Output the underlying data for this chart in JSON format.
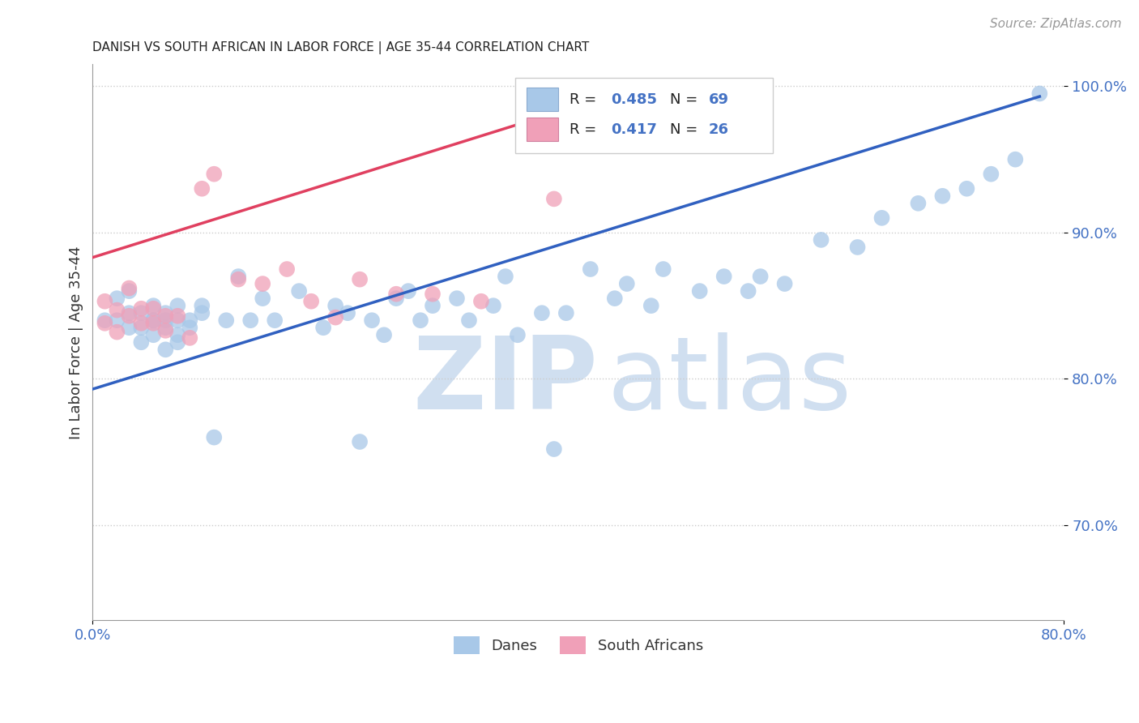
{
  "title": "DANISH VS SOUTH AFRICAN IN LABOR FORCE | AGE 35-44 CORRELATION CHART",
  "source": "Source: ZipAtlas.com",
  "ylabel": "In Labor Force | Age 35-44",
  "xlim": [
    0.0,
    0.8
  ],
  "ylim": [
    0.635,
    1.015
  ],
  "ytick_positions": [
    0.7,
    0.8,
    0.9,
    1.0
  ],
  "ytick_labels": [
    "70.0%",
    "80.0%",
    "90.0%",
    "100.0%"
  ],
  "xtick_positions": [
    0.0,
    0.8
  ],
  "xtick_labels": [
    "0.0%",
    "80.0%"
  ],
  "legend_r_blue": "0.485",
  "legend_n_blue": "69",
  "legend_r_pink": "0.417",
  "legend_n_pink": "26",
  "legend_label_blue": "Danes",
  "legend_label_pink": "South Africans",
  "blue_color": "#a8c8e8",
  "pink_color": "#f0a0b8",
  "trendline_blue": "#3060c0",
  "trendline_pink": "#e04060",
  "watermark_zip": "ZIP",
  "watermark_atlas": "atlas",
  "watermark_color": "#d0dff0",
  "title_color": "#222222",
  "tick_color": "#4472c4",
  "blue_scatter_x": [
    0.01,
    0.02,
    0.02,
    0.03,
    0.03,
    0.03,
    0.04,
    0.04,
    0.04,
    0.05,
    0.05,
    0.05,
    0.05,
    0.06,
    0.06,
    0.06,
    0.06,
    0.07,
    0.07,
    0.07,
    0.07,
    0.08,
    0.08,
    0.09,
    0.09,
    0.1,
    0.11,
    0.12,
    0.13,
    0.14,
    0.15,
    0.17,
    0.19,
    0.2,
    0.21,
    0.22,
    0.23,
    0.24,
    0.25,
    0.26,
    0.27,
    0.28,
    0.3,
    0.31,
    0.33,
    0.34,
    0.35,
    0.37,
    0.38,
    0.39,
    0.41,
    0.43,
    0.44,
    0.46,
    0.47,
    0.5,
    0.52,
    0.54,
    0.55,
    0.57,
    0.6,
    0.63,
    0.65,
    0.68,
    0.7,
    0.72,
    0.74,
    0.76,
    0.78
  ],
  "blue_scatter_y": [
    0.84,
    0.855,
    0.84,
    0.845,
    0.835,
    0.86,
    0.835,
    0.845,
    0.825,
    0.84,
    0.83,
    0.85,
    0.84,
    0.82,
    0.845,
    0.835,
    0.84,
    0.83,
    0.85,
    0.84,
    0.825,
    0.835,
    0.84,
    0.845,
    0.85,
    0.76,
    0.84,
    0.87,
    0.84,
    0.855,
    0.84,
    0.86,
    0.835,
    0.85,
    0.845,
    0.757,
    0.84,
    0.83,
    0.855,
    0.86,
    0.84,
    0.85,
    0.855,
    0.84,
    0.85,
    0.87,
    0.83,
    0.845,
    0.752,
    0.845,
    0.875,
    0.855,
    0.865,
    0.85,
    0.875,
    0.86,
    0.87,
    0.86,
    0.87,
    0.865,
    0.895,
    0.89,
    0.91,
    0.92,
    0.925,
    0.93,
    0.94,
    0.95,
    0.995
  ],
  "pink_scatter_x": [
    0.01,
    0.01,
    0.02,
    0.02,
    0.03,
    0.03,
    0.04,
    0.04,
    0.05,
    0.05,
    0.06,
    0.06,
    0.07,
    0.08,
    0.09,
    0.1,
    0.12,
    0.14,
    0.16,
    0.18,
    0.2,
    0.22,
    0.25,
    0.28,
    0.32,
    0.38
  ],
  "pink_scatter_y": [
    0.853,
    0.838,
    0.847,
    0.832,
    0.862,
    0.843,
    0.848,
    0.838,
    0.848,
    0.838,
    0.843,
    0.833,
    0.843,
    0.828,
    0.93,
    0.94,
    0.868,
    0.865,
    0.875,
    0.853,
    0.842,
    0.868,
    0.858,
    0.858,
    0.853,
    0.923
  ],
  "blue_trend_x": [
    0.0,
    0.78
  ],
  "blue_trend_y": [
    0.793,
    0.993
  ],
  "pink_trend_x": [
    0.0,
    0.42
  ],
  "pink_trend_y": [
    0.883,
    0.992
  ]
}
